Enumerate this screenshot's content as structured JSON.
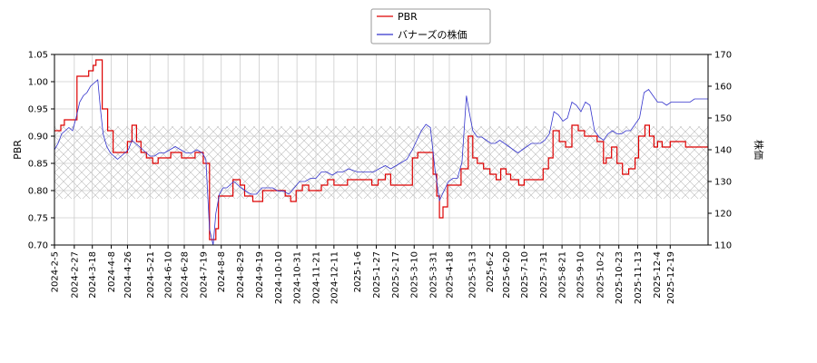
{
  "chart_data": {
    "type": "line",
    "ylabel_left": "PBR",
    "ylabel_right": "株価",
    "legend_placement": "top-center",
    "grid": true,
    "hatched_band_left": [
      0.785,
      0.918
    ],
    "ylim_left": [
      0.7,
      1.05
    ],
    "ylim_right": [
      110,
      170
    ],
    "yticks_left": [
      "0.70",
      "0.75",
      "0.80",
      "0.85",
      "0.90",
      "0.95",
      "1.00",
      "1.05"
    ],
    "yticks_right": [
      "110",
      "120",
      "130",
      "140",
      "150",
      "160",
      "170"
    ],
    "x_range": [
      "2024-02-05",
      "2026-01-30"
    ],
    "xticks": [
      "2024-2-5",
      "2024-2-27",
      "2024-3-18",
      "2024-4-8",
      "2024-4-26",
      "2024-5-21",
      "2024-6-10",
      "2024-6-28",
      "2024-7-19",
      "2024-8-8",
      "2024-8-29",
      "2024-9-19",
      "2024-10-10",
      "2024-10-31",
      "2024-11-21",
      "2024-12-11",
      "2025-1-6",
      "2025-1-27",
      "2025-2-17",
      "2025-3-10",
      "2025-3-31",
      "2025-4-18",
      "2025-5-13",
      "2025-6-2",
      "2025-6-20",
      "2025-7-10",
      "2025-7-31",
      "2025-8-21",
      "2025-9-10",
      "2025-10-2",
      "2025-10-23",
      "2025-11-13",
      "2025-12-4",
      "2025-12-19"
    ],
    "xtick_dates": [
      "2024-02-05",
      "2024-02-27",
      "2024-03-18",
      "2024-04-08",
      "2024-04-26",
      "2024-05-21",
      "2024-06-10",
      "2024-06-28",
      "2024-07-19",
      "2024-08-08",
      "2024-08-29",
      "2024-09-19",
      "2024-10-10",
      "2024-10-31",
      "2024-11-21",
      "2024-12-11",
      "2025-01-06",
      "2025-01-27",
      "2025-02-17",
      "2025-03-10",
      "2025-03-31",
      "2025-04-18",
      "2025-05-13",
      "2025-06-02",
      "2025-06-20",
      "2025-07-10",
      "2025-07-31",
      "2025-08-21",
      "2025-09-10",
      "2025-10-02",
      "2025-10-23",
      "2025-11-13",
      "2025-12-04",
      "2025-12-19"
    ],
    "series": [
      {
        "name": "PBR",
        "axis": "left",
        "color": "#dd0000",
        "step": true,
        "points": [
          [
            "2024-02-05",
            0.91
          ],
          [
            "2024-02-12",
            0.92
          ],
          [
            "2024-02-16",
            0.93
          ],
          [
            "2024-02-27",
            0.93
          ],
          [
            "2024-03-01",
            1.01
          ],
          [
            "2024-03-12",
            1.01
          ],
          [
            "2024-03-14",
            1.02
          ],
          [
            "2024-03-19",
            1.03
          ],
          [
            "2024-03-22",
            1.04
          ],
          [
            "2024-03-29",
            0.95
          ],
          [
            "2024-04-04",
            0.91
          ],
          [
            "2024-04-10",
            0.87
          ],
          [
            "2024-04-22",
            0.87
          ],
          [
            "2024-04-26",
            0.89
          ],
          [
            "2024-05-01",
            0.92
          ],
          [
            "2024-05-06",
            0.89
          ],
          [
            "2024-05-11",
            0.87
          ],
          [
            "2024-05-17",
            0.86
          ],
          [
            "2024-05-24",
            0.85
          ],
          [
            "2024-05-30",
            0.86
          ],
          [
            "2024-06-07",
            0.86
          ],
          [
            "2024-06-13",
            0.87
          ],
          [
            "2024-06-25",
            0.86
          ],
          [
            "2024-07-02",
            0.86
          ],
          [
            "2024-07-10",
            0.87
          ],
          [
            "2024-07-19",
            0.85
          ],
          [
            "2024-07-26",
            0.71
          ],
          [
            "2024-08-02",
            0.73
          ],
          [
            "2024-08-05",
            0.79
          ],
          [
            "2024-08-21",
            0.82
          ],
          [
            "2024-08-29",
            0.81
          ],
          [
            "2024-09-03",
            0.79
          ],
          [
            "2024-09-12",
            0.78
          ],
          [
            "2024-09-23",
            0.8
          ],
          [
            "2024-10-04",
            0.8
          ],
          [
            "2024-10-11",
            0.8
          ],
          [
            "2024-10-18",
            0.79
          ],
          [
            "2024-10-24",
            0.78
          ],
          [
            "2024-10-30",
            0.8
          ],
          [
            "2024-11-06",
            0.81
          ],
          [
            "2024-11-13",
            0.8
          ],
          [
            "2024-11-22",
            0.8
          ],
          [
            "2024-11-27",
            0.81
          ],
          [
            "2024-12-04",
            0.82
          ],
          [
            "2024-12-11",
            0.81
          ],
          [
            "2024-12-20",
            0.81
          ],
          [
            "2024-12-26",
            0.82
          ],
          [
            "2025-01-08",
            0.82
          ],
          [
            "2025-01-17",
            0.82
          ],
          [
            "2025-01-22",
            0.81
          ],
          [
            "2025-01-29",
            0.82
          ],
          [
            "2025-02-06",
            0.83
          ],
          [
            "2025-02-12",
            0.81
          ],
          [
            "2025-02-20",
            0.81
          ],
          [
            "2025-03-04",
            0.81
          ],
          [
            "2025-03-08",
            0.86
          ],
          [
            "2025-03-14",
            0.87
          ],
          [
            "2025-03-24",
            0.87
          ],
          [
            "2025-03-31",
            0.83
          ],
          [
            "2025-04-04",
            0.79
          ],
          [
            "2025-04-07",
            0.75
          ],
          [
            "2025-04-11",
            0.77
          ],
          [
            "2025-04-16",
            0.81
          ],
          [
            "2025-04-25",
            0.81
          ],
          [
            "2025-05-01",
            0.84
          ],
          [
            "2025-05-09",
            0.9
          ],
          [
            "2025-05-14",
            0.86
          ],
          [
            "2025-05-19",
            0.85
          ],
          [
            "2025-05-26",
            0.84
          ],
          [
            "2025-06-02",
            0.83
          ],
          [
            "2025-06-09",
            0.82
          ],
          [
            "2025-06-14",
            0.84
          ],
          [
            "2025-06-20",
            0.83
          ],
          [
            "2025-06-25",
            0.82
          ],
          [
            "2025-07-04",
            0.81
          ],
          [
            "2025-07-10",
            0.82
          ],
          [
            "2025-07-21",
            0.82
          ],
          [
            "2025-07-31",
            0.84
          ],
          [
            "2025-08-06",
            0.86
          ],
          [
            "2025-08-11",
            0.91
          ],
          [
            "2025-08-18",
            0.89
          ],
          [
            "2025-08-25",
            0.88
          ],
          [
            "2025-09-01",
            0.92
          ],
          [
            "2025-09-08",
            0.91
          ],
          [
            "2025-09-15",
            0.9
          ],
          [
            "2025-09-22",
            0.9
          ],
          [
            "2025-09-29",
            0.89
          ],
          [
            "2025-10-06",
            0.85
          ],
          [
            "2025-10-09",
            0.86
          ],
          [
            "2025-10-15",
            0.88
          ],
          [
            "2025-10-21",
            0.85
          ],
          [
            "2025-10-27",
            0.83
          ],
          [
            "2025-11-03",
            0.84
          ],
          [
            "2025-11-10",
            0.86
          ],
          [
            "2025-11-14",
            0.9
          ],
          [
            "2025-11-21",
            0.92
          ],
          [
            "2025-11-26",
            0.9
          ],
          [
            "2025-12-01",
            0.88
          ],
          [
            "2025-12-05",
            0.89
          ],
          [
            "2025-12-10",
            0.88
          ],
          [
            "2025-12-15",
            0.88
          ],
          [
            "2025-12-19",
            0.89
          ],
          [
            "2026-01-05",
            0.88
          ],
          [
            "2026-01-30",
            0.88
          ]
        ]
      },
      {
        "name": "バナーズの株価",
        "axis": "right",
        "color": "#3333cc",
        "points": [
          [
            "2024-02-05",
            140
          ],
          [
            "2024-02-09",
            142
          ],
          [
            "2024-02-13",
            145
          ],
          [
            "2024-02-17",
            146
          ],
          [
            "2024-02-21",
            147
          ],
          [
            "2024-02-25",
            146
          ],
          [
            "2024-02-29",
            150
          ],
          [
            "2024-03-04",
            155
          ],
          [
            "2024-03-08",
            157
          ],
          [
            "2024-03-12",
            158
          ],
          [
            "2024-03-16",
            160
          ],
          [
            "2024-03-20",
            161
          ],
          [
            "2024-03-24",
            162
          ],
          [
            "2024-03-27",
            153
          ],
          [
            "2024-03-30",
            145
          ],
          [
            "2024-04-03",
            141
          ],
          [
            "2024-04-07",
            139
          ],
          [
            "2024-04-11",
            138
          ],
          [
            "2024-04-15",
            137
          ],
          [
            "2024-04-19",
            138
          ],
          [
            "2024-04-23",
            139
          ],
          [
            "2024-04-27",
            140
          ],
          [
            "2024-05-01",
            143
          ],
          [
            "2024-05-05",
            142
          ],
          [
            "2024-05-09",
            141
          ],
          [
            "2024-05-13",
            140
          ],
          [
            "2024-05-17",
            139
          ],
          [
            "2024-05-21",
            138
          ],
          [
            "2024-05-26",
            138
          ],
          [
            "2024-05-31",
            139
          ],
          [
            "2024-06-06",
            139
          ],
          [
            "2024-06-12",
            140
          ],
          [
            "2024-06-18",
            141
          ],
          [
            "2024-06-24",
            140
          ],
          [
            "2024-06-30",
            139
          ],
          [
            "2024-07-06",
            139
          ],
          [
            "2024-07-12",
            140
          ],
          [
            "2024-07-18",
            139
          ],
          [
            "2024-07-22",
            137
          ],
          [
            "2024-07-26",
            115
          ],
          [
            "2024-07-30",
            110
          ],
          [
            "2024-08-02",
            120
          ],
          [
            "2024-08-06",
            126
          ],
          [
            "2024-08-10",
            128
          ],
          [
            "2024-08-14",
            128
          ],
          [
            "2024-08-18",
            129
          ],
          [
            "2024-08-22",
            130
          ],
          [
            "2024-08-26",
            129
          ],
          [
            "2024-08-30",
            128
          ],
          [
            "2024-09-04",
            127
          ],
          [
            "2024-09-10",
            126
          ],
          [
            "2024-09-16",
            126
          ],
          [
            "2024-09-22",
            128
          ],
          [
            "2024-09-28",
            128
          ],
          [
            "2024-10-04",
            128
          ],
          [
            "2024-10-10",
            127
          ],
          [
            "2024-10-16",
            127
          ],
          [
            "2024-10-22",
            126
          ],
          [
            "2024-10-28",
            128
          ],
          [
            "2024-11-03",
            130
          ],
          [
            "2024-11-09",
            130
          ],
          [
            "2024-11-15",
            131
          ],
          [
            "2024-11-21",
            131
          ],
          [
            "2024-11-27",
            133
          ],
          [
            "2024-12-03",
            133
          ],
          [
            "2024-12-09",
            132
          ],
          [
            "2024-12-15",
            133
          ],
          [
            "2024-12-21",
            133
          ],
          [
            "2024-12-27",
            134
          ],
          [
            "2025-01-06",
            133
          ],
          [
            "2025-01-12",
            133
          ],
          [
            "2025-01-18",
            133
          ],
          [
            "2025-01-24",
            133
          ],
          [
            "2025-01-30",
            134
          ],
          [
            "2025-02-06",
            135
          ],
          [
            "2025-02-12",
            134
          ],
          [
            "2025-02-18",
            135
          ],
          [
            "2025-02-24",
            136
          ],
          [
            "2025-03-02",
            137
          ],
          [
            "2025-03-08",
            140
          ],
          [
            "2025-03-13",
            143
          ],
          [
            "2025-03-18",
            146
          ],
          [
            "2025-03-23",
            148
          ],
          [
            "2025-03-28",
            147
          ],
          [
            "2025-04-02",
            134
          ],
          [
            "2025-04-07",
            124
          ],
          [
            "2025-04-12",
            127
          ],
          [
            "2025-04-17",
            130
          ],
          [
            "2025-04-22",
            131
          ],
          [
            "2025-04-27",
            131
          ],
          [
            "2025-05-02",
            136
          ],
          [
            "2025-05-07",
            157
          ],
          [
            "2025-05-10",
            152
          ],
          [
            "2025-05-14",
            146
          ],
          [
            "2025-05-19",
            144
          ],
          [
            "2025-05-24",
            144
          ],
          [
            "2025-05-29",
            143
          ],
          [
            "2025-06-03",
            142
          ],
          [
            "2025-06-08",
            142
          ],
          [
            "2025-06-13",
            143
          ],
          [
            "2025-06-18",
            142
          ],
          [
            "2025-06-23",
            141
          ],
          [
            "2025-06-28",
            140
          ],
          [
            "2025-07-03",
            139
          ],
          [
            "2025-07-08",
            140
          ],
          [
            "2025-07-13",
            141
          ],
          [
            "2025-07-18",
            142
          ],
          [
            "2025-07-23",
            142
          ],
          [
            "2025-07-28",
            142
          ],
          [
            "2025-08-02",
            143
          ],
          [
            "2025-08-07",
            145
          ],
          [
            "2025-08-12",
            152
          ],
          [
            "2025-08-17",
            151
          ],
          [
            "2025-08-22",
            149
          ],
          [
            "2025-08-27",
            150
          ],
          [
            "2025-09-01",
            155
          ],
          [
            "2025-09-06",
            154
          ],
          [
            "2025-09-11",
            152
          ],
          [
            "2025-09-16",
            155
          ],
          [
            "2025-09-21",
            154
          ],
          [
            "2025-09-26",
            146
          ],
          [
            "2025-10-01",
            144
          ],
          [
            "2025-10-06",
            143
          ],
          [
            "2025-10-11",
            145
          ],
          [
            "2025-10-16",
            146
          ],
          [
            "2025-10-21",
            145
          ],
          [
            "2025-10-26",
            145
          ],
          [
            "2025-10-31",
            146
          ],
          [
            "2025-11-05",
            146
          ],
          [
            "2025-11-10",
            148
          ],
          [
            "2025-11-15",
            150
          ],
          [
            "2025-11-20",
            158
          ],
          [
            "2025-11-25",
            159
          ],
          [
            "2025-11-30",
            157
          ],
          [
            "2025-12-05",
            155
          ],
          [
            "2025-12-10",
            155
          ],
          [
            "2025-12-15",
            154
          ],
          [
            "2025-12-20",
            155
          ],
          [
            "2026-01-05",
            155
          ],
          [
            "2026-01-10",
            155
          ],
          [
            "2026-01-15",
            156
          ],
          [
            "2026-01-20",
            156
          ],
          [
            "2026-01-25",
            156
          ],
          [
            "2026-01-30",
            156
          ]
        ]
      }
    ]
  }
}
